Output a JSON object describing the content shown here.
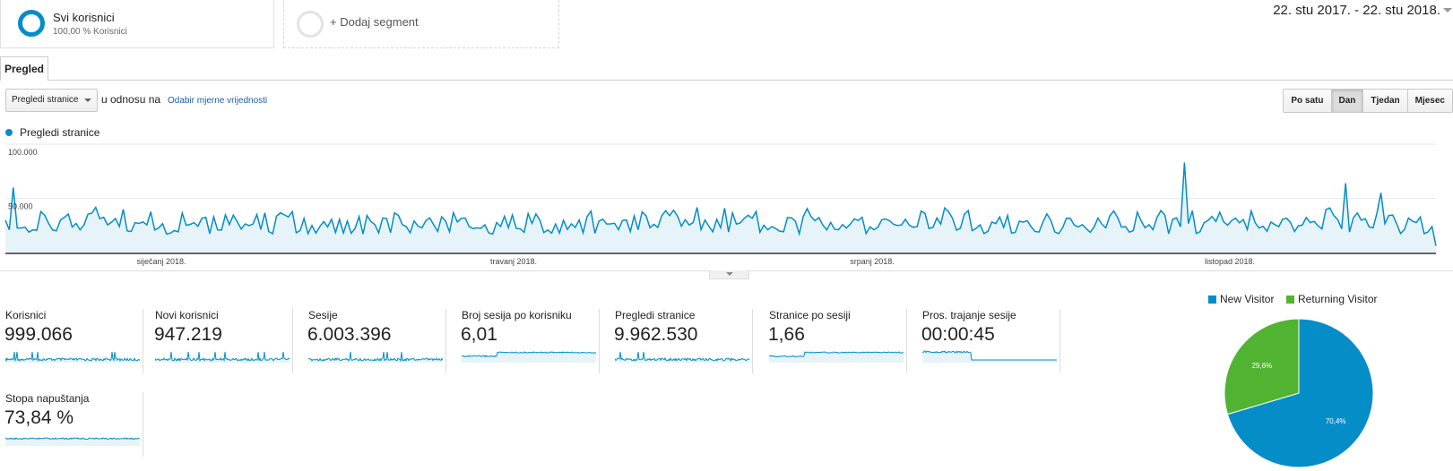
{
  "segments": {
    "active": {
      "title": "Svi korisnici",
      "subtitle": "100,00 % Korisnici"
    },
    "add_label": "+ Dodaj segment"
  },
  "date_range": "22. stu 2017. - 22. stu 2018.",
  "tabs": [
    {
      "label": "Pregled"
    }
  ],
  "controls": {
    "metric_select": "Pregledi stranice",
    "compare_label": "u odnosu na",
    "compare_link": "Odabir mjerne vrijednosti",
    "periods": [
      "Po satu",
      "Dan",
      "Tjedan",
      "Mjesec"
    ],
    "active_period": "Dan"
  },
  "legend": {
    "series_label": "Pregledi stranice"
  },
  "colors": {
    "accent": "#058dc7",
    "secondary": "#50b432",
    "fill": "#e6f4fa"
  },
  "chart_data": {
    "type": "area",
    "series": [
      {
        "name": "Pregledi stranice"
      }
    ],
    "y_ticks": [
      "100.000",
      "50.000"
    ],
    "x_tick_labels": [
      "siječanj 2018.",
      "travanj 2018.",
      "srpanj 2018.",
      "listopad 2018."
    ],
    "ylim": [
      0,
      100000
    ],
    "grid": true,
    "points_count": 365,
    "spikes": [
      {
        "day": 2,
        "value": 60000
      },
      {
        "day": 300,
        "value": 83000
      },
      {
        "day": 341,
        "value": 64000
      },
      {
        "day": 350,
        "value": 55000
      }
    ],
    "baseline_range": [
      17000,
      42000
    ]
  },
  "scorecards": [
    {
      "label": "Korisnici",
      "value": "999.066"
    },
    {
      "label": "Novi korisnici",
      "value": "947.219"
    },
    {
      "label": "Sesije",
      "value": "6.003.396"
    },
    {
      "label": "Broj sesija po korisniku",
      "value": "6,01"
    },
    {
      "label": "Pregledi stranice",
      "value": "9.962.530"
    },
    {
      "label": "Stranice po sesiji",
      "value": "1,66"
    },
    {
      "label": "Pros. trajanje sesije",
      "value": "00:00:45"
    },
    {
      "label": "Stopa napuštanja",
      "value": "73,84 %"
    }
  ],
  "pie": {
    "chart_data": {
      "type": "pie",
      "slices": [
        {
          "name": "New Visitor",
          "value": 70.4,
          "label": "70,4%",
          "color": "#058dc7"
        },
        {
          "name": "Returning Visitor",
          "value": 29.6,
          "label": "29,6%",
          "color": "#50b432"
        }
      ]
    }
  }
}
